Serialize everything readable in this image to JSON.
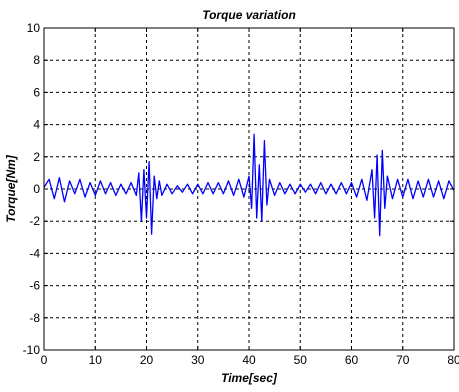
{
  "chart_data": {
    "type": "line",
    "title": "Torque variation",
    "xlabel": "Time[sec]",
    "ylabel": "Torque[Nm]",
    "xlim": [
      0,
      80
    ],
    "ylim": [
      -10,
      10
    ],
    "xticks": [
      0,
      10,
      20,
      30,
      40,
      50,
      60,
      70,
      80
    ],
    "yticks": [
      -10,
      -8,
      -6,
      -4,
      -2,
      0,
      2,
      4,
      6,
      8,
      10
    ],
    "grid": true,
    "legend": "none",
    "colors": {
      "series": "#0000ff",
      "grid": "#000000",
      "background": "#ffffff"
    },
    "series": [
      {
        "x": [
          0,
          1,
          2,
          3,
          4,
          5,
          6,
          7,
          8,
          9,
          10,
          11,
          12,
          13,
          14,
          15,
          16,
          17,
          18,
          18.5,
          19,
          19.5,
          20,
          20.5,
          21,
          21.5,
          22,
          22.5,
          23,
          24,
          25,
          26,
          27,
          28,
          29,
          30,
          31,
          32,
          33,
          34,
          35,
          36,
          37,
          38,
          39,
          40,
          40.5,
          41,
          41.5,
          42,
          42.5,
          43,
          43.5,
          44,
          45,
          46,
          47,
          48,
          49,
          50,
          51,
          52,
          53,
          54,
          55,
          56,
          57,
          58,
          59,
          60,
          61,
          62,
          63,
          64,
          64.5,
          65,
          65.5,
          66,
          66.5,
          67,
          68,
          69,
          70,
          71,
          72,
          73,
          74,
          75,
          76,
          77,
          78,
          79,
          80
        ],
        "values": [
          0.1,
          0.6,
          -0.6,
          0.7,
          -0.8,
          0.5,
          -0.3,
          0.6,
          -0.5,
          0.4,
          -0.4,
          0.5,
          -0.3,
          0.4,
          -0.4,
          0.3,
          -0.3,
          0.4,
          -0.4,
          1.0,
          -2.0,
          1.2,
          -1.8,
          1.7,
          -2.8,
          0.8,
          -0.6,
          0.5,
          -0.4,
          0.3,
          -0.3,
          0.2,
          -0.2,
          0.3,
          -0.3,
          0.3,
          -0.3,
          0.4,
          -0.3,
          0.4,
          -0.3,
          0.5,
          -0.4,
          0.6,
          -0.5,
          0.8,
          -1.2,
          3.4,
          -1.8,
          1.5,
          -2.0,
          3.0,
          -1.0,
          0.6,
          -0.4,
          0.4,
          -0.3,
          0.3,
          -0.3,
          0.3,
          -0.2,
          0.3,
          -0.3,
          0.4,
          -0.3,
          0.3,
          -0.3,
          0.4,
          -0.3,
          0.4,
          -0.5,
          0.6,
          -0.7,
          1.2,
          -1.8,
          2.1,
          -2.9,
          2.4,
          -1.2,
          0.8,
          -0.6,
          0.6,
          -0.5,
          0.6,
          -0.6,
          0.5,
          -0.5,
          0.6,
          -0.5,
          0.5,
          -0.6,
          0.5,
          -0.1
        ]
      }
    ]
  }
}
